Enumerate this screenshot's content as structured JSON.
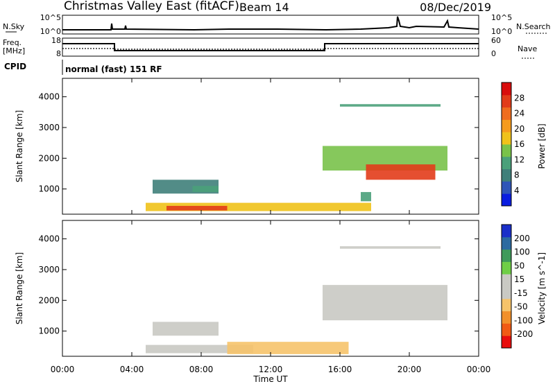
{
  "header": {
    "title": "Christmas Valley East (fitACF)",
    "beam": "Beam 14",
    "date": "08/Dec/2019"
  },
  "strips": {
    "nsky_label": "N.Sky",
    "nsky_ticks": [
      "10^5",
      "10^0"
    ],
    "nsearch_label": "N.Search",
    "nsearch_ticks": [
      "10^5",
      "10^0"
    ],
    "freq_label_1": "Freq.",
    "freq_label_2": "[MHz]",
    "freq_ticks": [
      "18",
      "8"
    ],
    "nave_label": "Nave",
    "nave_ticks": [
      "60",
      "0"
    ],
    "cpid_label": "CPID",
    "cpid_text": "normal (fast) 151 RF"
  },
  "colors": {
    "power_scale": [
      "#0a1de0",
      "#2f55b8",
      "#3f7f7a",
      "#4aa07a",
      "#79c24a",
      "#f0c21a",
      "#f59b1d",
      "#ef6d1f",
      "#e23c1a",
      "#d90d0d"
    ],
    "velocity_scale": [
      "#e80d0d",
      "#f15a14",
      "#f2902a",
      "#f6c36a",
      "#c9c9c3",
      "#c9c9c3",
      "#6fce46",
      "#3f9a5a",
      "#2c6aa0",
      "#1a2fc9"
    ],
    "ground_scatter": "#c9c9c3"
  },
  "chart_data": [
    {
      "type": "heatmap",
      "title": "Power",
      "ylabel": "Slant Range [km]",
      "y_ticks": [
        "4000",
        "3000",
        "2000",
        "1000"
      ],
      "ylim": [
        180,
        4600
      ],
      "colorbar_label": "Power [dB]",
      "colorbar_ticks": [
        "28",
        "24",
        "20",
        "16",
        "12",
        "8",
        "4"
      ],
      "colorbar_range": [
        0,
        32
      ],
      "x_ticks": [
        "00:00",
        "04:00",
        "08:00",
        "12:00",
        "16:00",
        "20:00",
        "00:00"
      ],
      "xlim_hours": [
        0,
        24
      ],
      "regions": [
        {
          "x": [
            5.2,
            9.0
          ],
          "y": [
            850,
            1300
          ],
          "value": 8
        },
        {
          "x": [
            7.5,
            9.0
          ],
          "y": [
            900,
            1100
          ],
          "value": 12
        },
        {
          "x": [
            4.8,
            17.8
          ],
          "y": [
            280,
            550
          ],
          "value": 18
        },
        {
          "x": [
            6.0,
            9.5
          ],
          "y": [
            300,
            450
          ],
          "value": 26
        },
        {
          "x": [
            15.0,
            22.2
          ],
          "y": [
            1600,
            2400
          ],
          "value": 14
        },
        {
          "x": [
            17.5,
            21.5
          ],
          "y": [
            1300,
            1800
          ],
          "value": 26
        },
        {
          "x": [
            16.0,
            21.8
          ],
          "y": [
            3680,
            3760
          ],
          "value": 10
        },
        {
          "x": [
            17.2,
            17.8
          ],
          "y": [
            600,
            900
          ],
          "value": 12
        }
      ]
    },
    {
      "type": "heatmap",
      "title": "Velocity",
      "ylabel": "Slant Range [km]",
      "y_ticks": [
        "4000",
        "3000",
        "2000",
        "1000"
      ],
      "ylim": [
        180,
        4600
      ],
      "colorbar_label": "Velocity [m s^-1]",
      "colorbar_ticks": [
        "200",
        "100",
        "50",
        "15",
        "-15",
        "-50",
        "-100",
        "-200"
      ],
      "colorbar_range": [
        -250,
        250
      ],
      "x_ticks": [
        "00:00",
        "04:00",
        "08:00",
        "12:00",
        "16:00",
        "20:00",
        "00:00"
      ],
      "xlim_hours": [
        0,
        24
      ],
      "xlabel": "Time UT",
      "regions": [
        {
          "x": [
            5.2,
            9.0
          ],
          "y": [
            850,
            1300
          ],
          "value": 0
        },
        {
          "x": [
            4.8,
            11.0
          ],
          "y": [
            280,
            550
          ],
          "value": 0
        },
        {
          "x": [
            9.5,
            16.5
          ],
          "y": [
            250,
            650
          ],
          "value": -60
        },
        {
          "x": [
            15.0,
            22.2
          ],
          "y": [
            1350,
            2500
          ],
          "value": 0
        },
        {
          "x": [
            16.0,
            21.8
          ],
          "y": [
            3680,
            3760
          ],
          "value": 0
        }
      ]
    }
  ]
}
